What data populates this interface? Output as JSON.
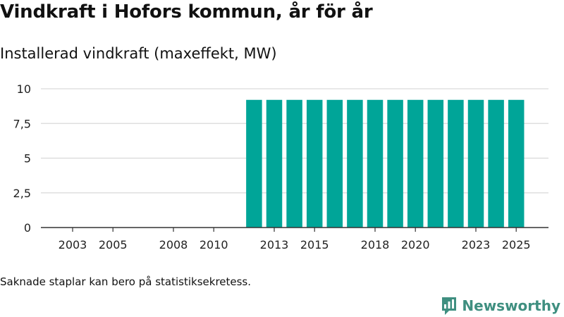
{
  "header": {
    "title": "Vindkraft i Hofors kommun, år för år",
    "subtitle": "Installerad vindkraft (maxeffekt, MW)"
  },
  "footer": {
    "note": "Saknade staplar kan bero på statistiksekretess.",
    "brand": "Newsworthy"
  },
  "colors": {
    "bar": "#00a598",
    "grid": "#d9d9d9",
    "axis": "#333333",
    "brand": "#3f8f80"
  },
  "chart_data": {
    "type": "bar",
    "title": "Vindkraft i Hofors kommun, år för år",
    "ylabel": "Installerad vindkraft (maxeffekt, MW)",
    "xlabel": "",
    "ylim": [
      0,
      10
    ],
    "yticks": [
      0,
      2.5,
      5,
      7.5,
      10
    ],
    "ytick_labels": [
      "0",
      "2,5",
      "5",
      "7,5",
      "10"
    ],
    "categories": [
      "2003",
      "2004",
      "2005",
      "2006",
      "2007",
      "2008",
      "2009",
      "2010",
      "2011",
      "2012",
      "2013",
      "2014",
      "2015",
      "2016",
      "2017",
      "2018",
      "2019",
      "2020",
      "2021",
      "2022",
      "2023",
      "2024",
      "2025"
    ],
    "xtick_labels": [
      "2003",
      "2005",
      "2008",
      "2010",
      "2013",
      "2015",
      "2018",
      "2020",
      "2023",
      "2025"
    ],
    "values": [
      null,
      null,
      null,
      null,
      null,
      null,
      null,
      null,
      null,
      9.2,
      9.2,
      9.2,
      9.2,
      9.2,
      9.2,
      9.2,
      9.2,
      9.2,
      9.2,
      9.2,
      9.2,
      9.2,
      9.2
    ],
    "grid": true
  }
}
